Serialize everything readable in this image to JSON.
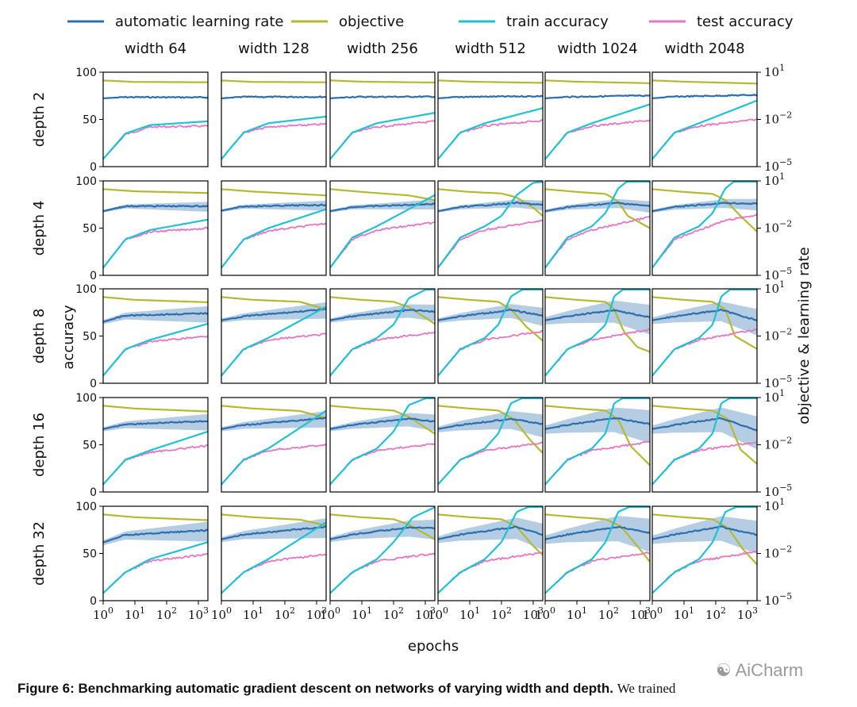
{
  "chart_data": {
    "type": "line",
    "legend": {
      "placement": "top",
      "entries": [
        {
          "label": "automatic learning rate",
          "color": "#2c6fae"
        },
        {
          "label": "objective",
          "color": "#b5b932"
        },
        {
          "label": "train accuracy",
          "color": "#22c0d3"
        },
        {
          "label": "test accuracy",
          "color": "#e377c2"
        }
      ]
    },
    "column_titles": [
      "width 64",
      "width 128",
      "width 256",
      "width 512",
      "width 1024",
      "width 2048"
    ],
    "row_titles": [
      "depth 2",
      "depth 4",
      "depth 8",
      "depth 16",
      "depth 32"
    ],
    "xlabel": "epochs",
    "ylabel_left": "accuracy",
    "ylabel_right": "objective & learning rate",
    "x_scale": "log",
    "x_range": [
      1,
      2000
    ],
    "x_ticks": [
      {
        "value": 1,
        "base": "10",
        "exp": "0"
      },
      {
        "value": 10,
        "base": "10",
        "exp": "1"
      },
      {
        "value": 100,
        "base": "10",
        "exp": "2"
      },
      {
        "value": 1000,
        "base": "10",
        "exp": "3"
      }
    ],
    "left_ylim": [
      0,
      100
    ],
    "left_ticks": [
      "0",
      "50",
      "100"
    ],
    "right_scale": "log",
    "right_ylim": [
      1e-05,
      10
    ],
    "right_ticks": [
      {
        "value": 10,
        "base": "10",
        "exp": "1"
      },
      {
        "value": 0.01,
        "base": "10",
        "exp": "−2"
      },
      {
        "value": 1e-05,
        "base": "10",
        "exp": "−5"
      }
    ],
    "panels": [
      [
        {
          "train": [
            [
              1,
              8
            ],
            [
              5,
              35
            ],
            [
              30,
              44
            ],
            [
              2000,
              48
            ]
          ],
          "test": [
            [
              1,
              8
            ],
            [
              5,
              34
            ],
            [
              30,
              42
            ],
            [
              2000,
              43
            ]
          ],
          "objective": [
            [
              1,
              3.0
            ],
            [
              10,
              2.4
            ],
            [
              2000,
              2.3
            ]
          ],
          "lr": [
            [
              1,
              0.22
            ],
            [
              5,
              0.26
            ],
            [
              2000,
              0.25
            ]
          ],
          "band": 0.0
        }
      ]
    ]
  }
}
